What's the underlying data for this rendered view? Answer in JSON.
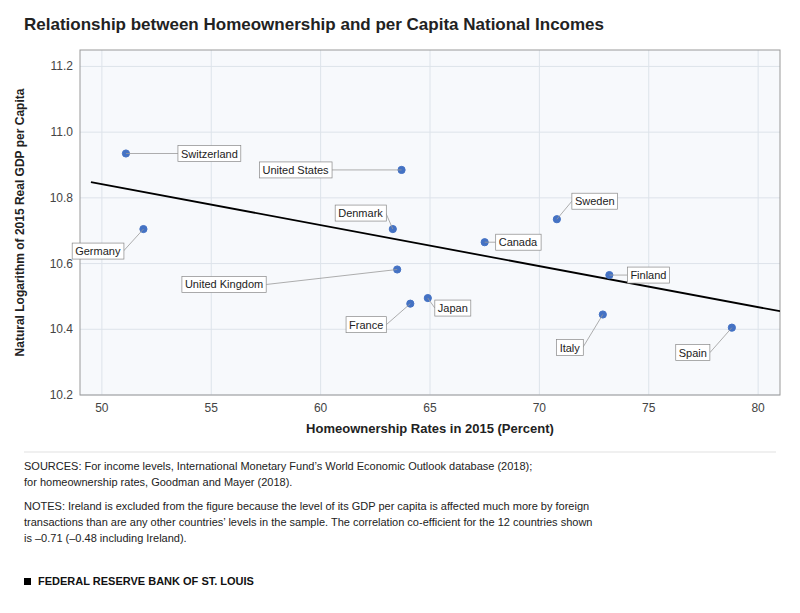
{
  "chart_data": {
    "type": "scatter",
    "title": "Relationship between Homeownership and per Capita National Incomes",
    "xlabel": "Homeownership Rates in 2015 (Percent)",
    "ylabel": "Natural Logarithm of 2015 Real GDP per Capita",
    "xlim": [
      49,
      81
    ],
    "ylim": [
      10.2,
      11.25
    ],
    "xticks": [
      50,
      55,
      60,
      65,
      70,
      75,
      80
    ],
    "yticks": [
      10.2,
      10.4,
      10.6,
      10.8,
      {
        "value": 11,
        "label": "11.0"
      },
      11.2
    ],
    "grid": true,
    "color": "#4472C4",
    "labels": [
      "Switzerland",
      "Germany",
      "United States",
      "Denmark",
      "United Kingdom",
      "France",
      "Japan",
      "Canada",
      "Sweden",
      "Finland",
      "Italy",
      "Spain"
    ],
    "x": [
      51.1,
      51.9,
      63.7,
      63.3,
      63.5,
      64.1,
      64.9,
      67.5,
      70.8,
      73.2,
      72.9,
      78.8
    ],
    "values": [
      10.935,
      10.705,
      10.885,
      10.705,
      10.582,
      10.478,
      10.495,
      10.665,
      10.735,
      10.565,
      10.445,
      10.405
    ],
    "trendline": {
      "type": "line",
      "color": "#000000",
      "x": [
        49.5,
        81
      ],
      "values": [
        10.848,
        10.455
      ]
    },
    "sources": "SOURCES: For income levels, International Monetary Fund’s World Economic Outlook database (2018);\nfor homeownership rates, Goodman and Mayer (2018).",
    "notes": "NOTES: Ireland is excluded from the figure because the level of its GDP per capita is affected much more by foreign\ntransactions than are any other countries’ levels in the sample. The correlation co-efficient for the 12 countries shown\nis –0.71 (–0.48 including Ireland).",
    "footer": "FEDERAL RESERVE BANK OF ST. LOUIS"
  }
}
